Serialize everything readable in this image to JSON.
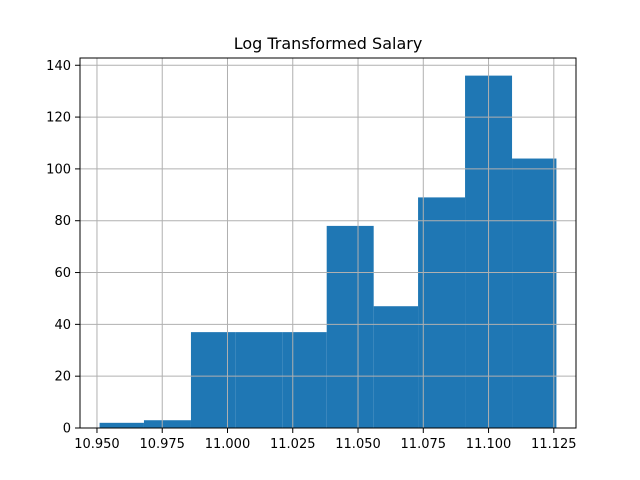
{
  "chart_data": {
    "type": "bar",
    "title": "Log Transformed Salary",
    "xlabel": "",
    "ylabel": "",
    "bars": [
      {
        "x0": 10.951,
        "x1": 10.968,
        "value": 2
      },
      {
        "x0": 10.968,
        "x1": 10.986,
        "value": 3
      },
      {
        "x0": 10.986,
        "x1": 11.003,
        "value": 37
      },
      {
        "x0": 11.003,
        "x1": 11.021,
        "value": 37
      },
      {
        "x0": 11.021,
        "x1": 11.038,
        "value": 37
      },
      {
        "x0": 11.038,
        "x1": 11.056,
        "value": 78
      },
      {
        "x0": 11.056,
        "x1": 11.073,
        "value": 47
      },
      {
        "x0": 11.073,
        "x1": 11.091,
        "value": 89
      },
      {
        "x0": 11.091,
        "x1": 11.109,
        "value": 136
      },
      {
        "x0": 11.109,
        "x1": 11.126,
        "value": 104
      }
    ],
    "xlim": [
      10.9435,
      11.1335
    ],
    "ylim": [
      0,
      142.8
    ],
    "xticks": [
      10.95,
      10.975,
      11.0,
      11.025,
      11.05,
      11.075,
      11.1,
      11.125
    ],
    "xtick_labels": [
      "10.950",
      "10.975",
      "11.000",
      "11.025",
      "11.050",
      "11.075",
      "11.100",
      "11.125"
    ],
    "yticks": [
      0,
      20,
      40,
      60,
      80,
      100,
      120,
      140
    ],
    "ytick_labels": [
      "0",
      "20",
      "40",
      "60",
      "80",
      "100",
      "120",
      "140"
    ],
    "grid": true,
    "bar_color": "#1f77b4",
    "grid_color": "#b0b0b0"
  }
}
